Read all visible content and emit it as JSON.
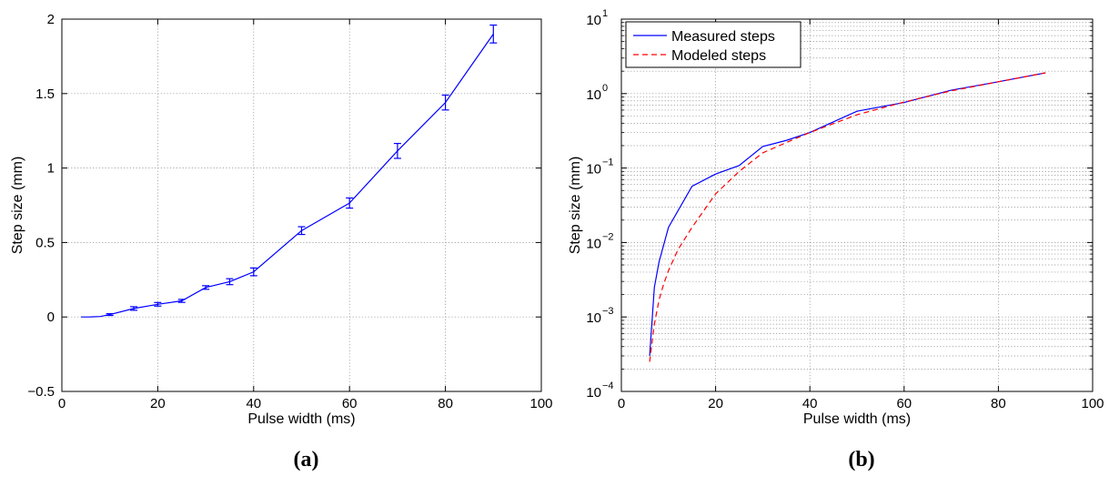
{
  "chart_data": [
    {
      "panel_label": "(a)",
      "type": "line",
      "xlabel": "Pulse width (ms)",
      "ylabel": "Step size (mm)",
      "xlim": [
        0,
        100
      ],
      "ylim": [
        -0.5,
        2
      ],
      "xticks": [
        0,
        20,
        40,
        60,
        80,
        100
      ],
      "yticks": [
        -0.5,
        0,
        0.5,
        1,
        1.5,
        2
      ],
      "xtick_labels": [
        "0",
        "20",
        "40",
        "60",
        "80",
        "100"
      ],
      "ytick_labels": [
        "−0.5",
        "0",
        "0.5",
        "1",
        "1.5",
        "2"
      ],
      "grid": true,
      "series": [
        {
          "color": "#0000ff",
          "x": [
            4,
            6,
            8,
            10,
            15,
            20,
            25,
            30,
            35,
            40,
            50,
            60,
            70,
            80,
            90
          ],
          "y": [
            0,
            0.0003,
            0.003,
            0.016,
            0.057,
            0.085,
            0.108,
            0.198,
            0.237,
            0.303,
            0.58,
            0.765,
            1.115,
            1.44,
            1.9
          ],
          "err": [
            0,
            0,
            0,
            0.006,
            0.012,
            0.012,
            0.01,
            0.012,
            0.02,
            0.026,
            0.026,
            0.034,
            0.05,
            0.05,
            0.06
          ]
        }
      ]
    },
    {
      "panel_label": "(b)",
      "type": "line",
      "xlabel": "Pulse width (ms)",
      "ylabel": "Step size (mm)",
      "xlim": [
        0,
        100
      ],
      "ylim": [
        0.0001,
        10
      ],
      "yscale": "log",
      "xticks": [
        0,
        20,
        40,
        60,
        80,
        100
      ],
      "xtick_labels": [
        "0",
        "20",
        "40",
        "60",
        "80",
        "100"
      ],
      "ytick_exponents": [
        -4,
        -3,
        -2,
        -1,
        0,
        1
      ],
      "ytick_base": "10",
      "grid": true,
      "legend": {
        "position": "top-left"
      },
      "series": [
        {
          "name": "Measured steps",
          "color": "#0000ff",
          "dash": "solid",
          "x": [
            6,
            7,
            8,
            10,
            15,
            20,
            25,
            30,
            35,
            40,
            50,
            60,
            70,
            80,
            90
          ],
          "y": [
            0.0003,
            0.0025,
            0.0055,
            0.016,
            0.057,
            0.083,
            0.108,
            0.195,
            0.235,
            0.3,
            0.58,
            0.76,
            1.11,
            1.44,
            1.9
          ]
        },
        {
          "name": "Modeled steps",
          "color": "#ff0000",
          "dash": "dashed",
          "x": [
            6,
            7,
            8,
            9,
            10,
            12,
            15,
            20,
            25,
            30,
            35,
            40,
            50,
            60,
            70,
            80,
            90
          ],
          "y": [
            0.00025,
            0.0008,
            0.0017,
            0.0028,
            0.0042,
            0.008,
            0.016,
            0.045,
            0.09,
            0.16,
            0.22,
            0.3,
            0.52,
            0.77,
            1.09,
            1.44,
            1.9
          ]
        }
      ]
    }
  ]
}
